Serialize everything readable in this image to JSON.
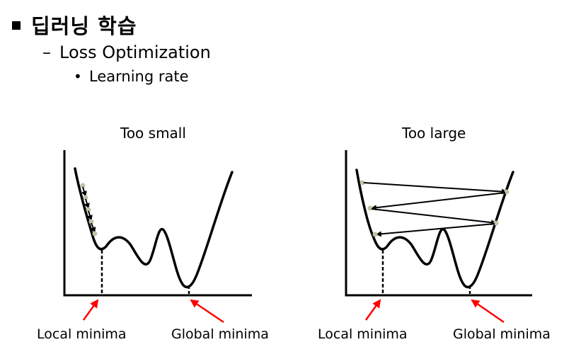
{
  "slide": {
    "heading": "딥러닝 학습",
    "subheading": "Loss Optimization",
    "bullet": "Learning rate",
    "dash_glyph": "–",
    "dot_glyph": "•"
  },
  "left_panel": {
    "title": "Too small",
    "local_label": "Local minima",
    "global_label": "Global minima"
  },
  "right_panel": {
    "title": "Too large",
    "local_label": "Local minima",
    "global_label": "Global minima"
  },
  "colors": {
    "curve": "#000000",
    "pointer_arrow": "#ff0000",
    "step_dot": "#b8c7a4"
  }
}
